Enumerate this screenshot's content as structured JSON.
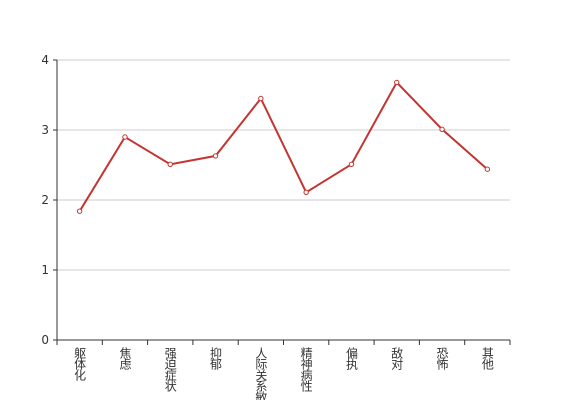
{
  "chart_data": {
    "type": "line",
    "categories": [
      "躯体化",
      "焦虑",
      "强迫症状",
      "抑郁",
      "人际关系敏感",
      "精神病性",
      "偏执",
      "敌对",
      "恐怖",
      "其他"
    ],
    "values": [
      1.84,
      2.9,
      2.51,
      2.63,
      3.45,
      2.11,
      2.51,
      3.68,
      3.01,
      2.44
    ],
    "color": "#c23531",
    "ylim": [
      0,
      4
    ],
    "yticks": [
      0,
      1,
      2,
      3,
      4
    ],
    "grid": true
  }
}
